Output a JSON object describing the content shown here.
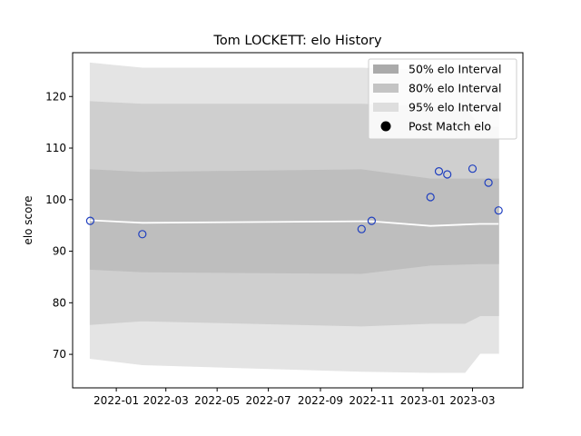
{
  "chart_data": {
    "type": "line",
    "title": "Tom LOCKETT: elo History",
    "xlabel": "",
    "ylabel": "elo score",
    "xlim": [
      "2021-11-10",
      "2023-04-30"
    ],
    "ylim": [
      63.5,
      128.5
    ],
    "x_ticks": [
      "2022-01",
      "2022-03",
      "2022-05",
      "2022-07",
      "2022-09",
      "2022-11",
      "2023-01",
      "2023-03"
    ],
    "y_ticks": [
      70,
      80,
      90,
      100,
      110,
      120
    ],
    "grid": false,
    "legend_position": "top-right",
    "legend": [
      "50% elo Interval",
      "80% elo Interval",
      "95% elo Interval",
      "Post Match elo"
    ],
    "series": [
      {
        "name": "95% elo Interval",
        "kind": "band",
        "color": "#e4e4e4",
        "x": [
          "2021-12-01",
          "2022-02-01",
          "2022-10-20",
          "2023-01-10",
          "2023-02-20",
          "2023-03-10",
          "2023-04-01"
        ],
        "lower": [
          69.2,
          68.0,
          66.7,
          66.5,
          66.5,
          70.2,
          70.2
        ],
        "upper": [
          126.5,
          125.5,
          125.5,
          125.0,
          124.5,
          124.5,
          124.5
        ]
      },
      {
        "name": "80% elo Interval",
        "kind": "band",
        "color": "#cfcfcf",
        "x": [
          "2021-12-01",
          "2022-02-01",
          "2022-10-20",
          "2023-01-10",
          "2023-02-20",
          "2023-03-10",
          "2023-04-01"
        ],
        "lower": [
          75.8,
          76.5,
          75.5,
          76.0,
          76.0,
          77.5,
          77.5
        ],
        "upper": [
          119.0,
          118.5,
          118.5,
          118.0,
          118.0,
          114.0,
          114.0
        ]
      },
      {
        "name": "50% elo Interval",
        "kind": "band",
        "color": "#bebebe",
        "x": [
          "2021-12-01",
          "2022-02-01",
          "2022-10-20",
          "2023-01-10",
          "2023-02-20",
          "2023-03-10",
          "2023-04-01"
        ],
        "lower": [
          86.5,
          86.0,
          85.7,
          87.3,
          87.5,
          87.6,
          87.6
        ],
        "upper": [
          105.8,
          105.3,
          105.8,
          104.0,
          104.0,
          104.0,
          104.0
        ]
      },
      {
        "name": "mean elo",
        "kind": "line",
        "color": "#ffffff",
        "x": [
          "2021-12-01",
          "2022-02-01",
          "2022-10-20",
          "2022-11-01",
          "2023-01-10",
          "2023-03-10",
          "2023-04-01"
        ],
        "y": [
          96.0,
          95.5,
          95.8,
          95.8,
          94.9,
          95.3,
          95.3
        ]
      },
      {
        "name": "Post Match elo",
        "kind": "scatter",
        "color": "#1f3fbf",
        "x": [
          "2021-12-01",
          "2022-02-01",
          "2022-10-20",
          "2022-11-01",
          "2023-01-10",
          "2023-01-20",
          "2023-01-30",
          "2023-03-01",
          "2023-03-20",
          "2023-04-01"
        ],
        "y": [
          95.9,
          93.3,
          94.3,
          95.9,
          100.5,
          105.5,
          104.9,
          106.0,
          103.3,
          97.9
        ]
      }
    ]
  }
}
